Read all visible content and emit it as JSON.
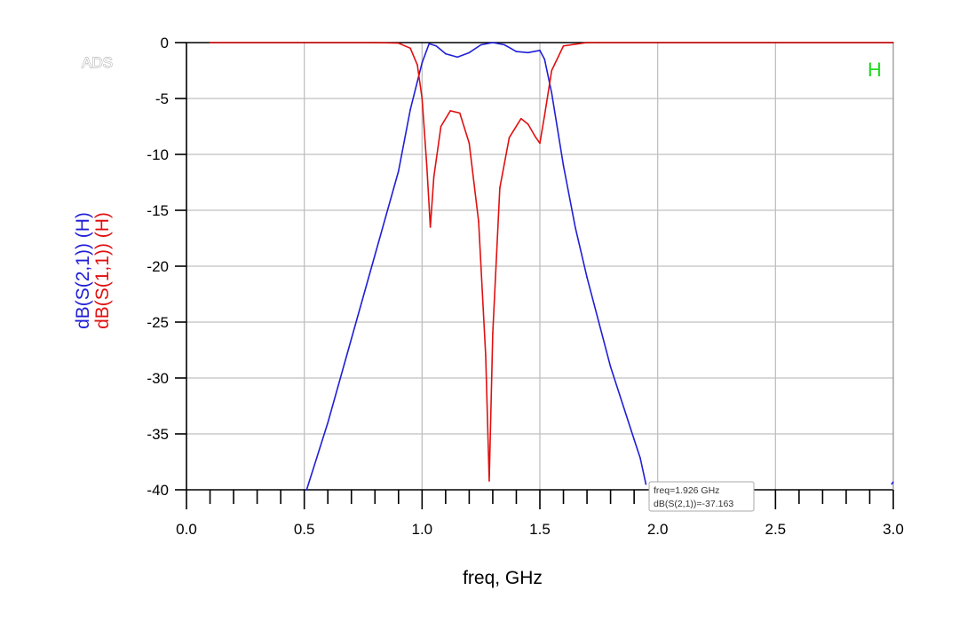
{
  "logo": "ADS",
  "marker_name": "H",
  "tooltip": {
    "line1": "freq=1.926 GHz",
    "line2": "dB(S(2,1))=-37.163"
  },
  "colors": {
    "s21": "#1f1fd6",
    "s11": "#e01010",
    "marker": "#22dd22",
    "grid": "#c0c0c0"
  },
  "chart_data": {
    "type": "line",
    "xlabel": "freq, GHz",
    "ylabel_series": [
      "dB(S(2,1))",
      "dB(S(1,1))"
    ],
    "ylabel_suffix": "(H)",
    "xlim": [
      0.0,
      3.0
    ],
    "ylim": [
      -40,
      0
    ],
    "x_ticks": [
      "0.0",
      "0.5",
      "1.0",
      "1.5",
      "2.0",
      "2.5",
      "3.0"
    ],
    "y_ticks": [
      "0",
      "-5",
      "-10",
      "-15",
      "-20",
      "-25",
      "-30",
      "-35",
      "-40"
    ],
    "grid": true,
    "series": [
      {
        "name": "dB(S(2,1))",
        "color": "#1f1fd6",
        "x": [
          0.51,
          0.6,
          0.7,
          0.8,
          0.9,
          0.95,
          1.0,
          1.03,
          1.06,
          1.1,
          1.15,
          1.2,
          1.25,
          1.3,
          1.35,
          1.4,
          1.45,
          1.5,
          1.52,
          1.55,
          1.6,
          1.65,
          1.7,
          1.8,
          1.9,
          1.926,
          1.95
        ],
        "y": [
          -40,
          -34,
          -26.5,
          -19,
          -11.5,
          -6,
          -1.8,
          -0.1,
          -0.3,
          -1,
          -1.3,
          -0.9,
          -0.2,
          0,
          -0.2,
          -0.8,
          -0.9,
          -0.7,
          -1.5,
          -4.5,
          -11,
          -16.5,
          -21,
          -29,
          -35.5,
          -37.163,
          -39.5
        ]
      },
      {
        "name": "dB(S(1,1))",
        "color": "#e01010",
        "x": [
          0.1,
          0.8,
          0.9,
          0.95,
          0.98,
          1.0,
          1.02,
          1.035,
          1.05,
          1.08,
          1.12,
          1.16,
          1.2,
          1.24,
          1.27,
          1.285,
          1.3,
          1.33,
          1.37,
          1.42,
          1.45,
          1.48,
          1.5,
          1.52,
          1.55,
          1.6,
          1.7,
          1.75,
          3.0
        ],
        "y": [
          0,
          0,
          -0.05,
          -0.5,
          -2,
          -5,
          -11,
          -16.5,
          -12,
          -7.5,
          -6.1,
          -6.3,
          -9,
          -16,
          -28,
          -39.2,
          -26,
          -13,
          -8.5,
          -6.8,
          -7.3,
          -8.4,
          -9,
          -6.5,
          -2.5,
          -0.3,
          0,
          0,
          0
        ]
      }
    ]
  }
}
